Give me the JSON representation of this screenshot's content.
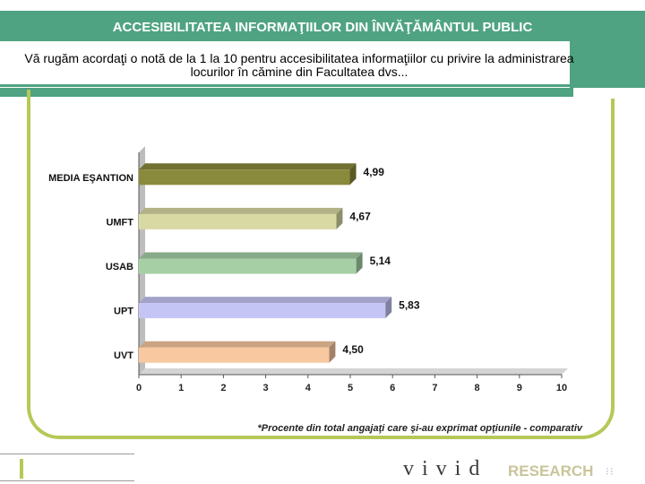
{
  "header": {
    "title": "ACCESIBILITATEA INFORMAŢIILOR DIN ÎNVĂŢĂMÂNTUL PUBLIC",
    "question": "Vă rugăm acordaţi o notă de la 1 la 10 pentru accesibilitatea informaţiilor cu privire  la administrarea locurilor în cămine din Facultatea dvs..."
  },
  "note": "*Procente din total angajaţi care şi-au exprimat opţiunile - comparativ",
  "logo": {
    "word": "vivid",
    "research": "RESEARCH",
    "dots": "⁝⁝"
  },
  "colors": {
    "band": "#4fa382",
    "frame": "#b7c857"
  },
  "chart_data": {
    "type": "bar",
    "orientation": "horizontal",
    "categories": [
      "MEDIA EŞANTION",
      "UMFT",
      "USAB",
      "UPT",
      "UVT"
    ],
    "values": [
      4.99,
      4.67,
      5.14,
      5.83,
      4.5
    ],
    "value_labels": [
      "4,99",
      "4,67",
      "5,14",
      "5,83",
      "4,50"
    ],
    "bar_colors": [
      "#8a8a3c",
      "#d9d9a3",
      "#a6cfa6",
      "#c5c5f5",
      "#f8c8a0"
    ],
    "xlim": [
      0,
      10
    ],
    "xticks": [
      "0",
      "1",
      "2",
      "3",
      "4",
      "5",
      "6",
      "7",
      "8",
      "9",
      "10"
    ],
    "grid": false
  }
}
